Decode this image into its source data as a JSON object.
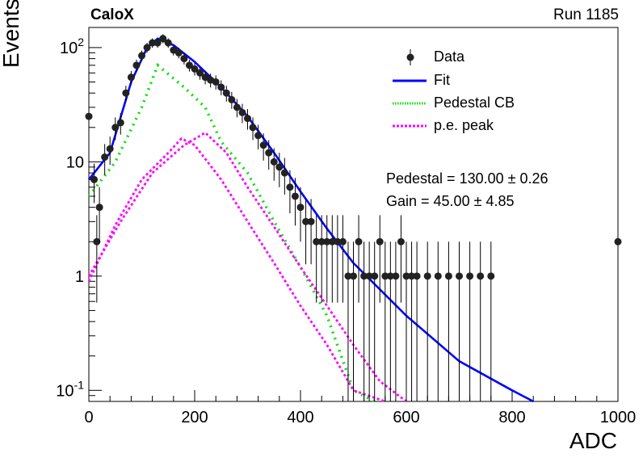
{
  "header": {
    "left_label": "CaloX",
    "right_label": "Run 1185"
  },
  "annotations": {
    "pedestal": "Pedestal = 130.00 ± 0.26",
    "gain": "Gain = 45.00 ± 4.85"
  },
  "legend": [
    {
      "label": "Data",
      "style": "marker",
      "color": "#000000"
    },
    {
      "label": "Fit",
      "style": "solid",
      "color": "#0000ff"
    },
    {
      "label": "Pedestal CB",
      "style": "dotted",
      "color": "#00e000"
    },
    {
      "label": "p.e. peak",
      "style": "dashed",
      "color": "#ff00ff"
    }
  ],
  "chart_data": {
    "type": "scatter",
    "xlabel": "ADC",
    "ylabel": "Events",
    "xlim": [
      0,
      1000
    ],
    "ylim": [
      0.08,
      150
    ],
    "yscale": "log",
    "x_ticks": [
      0,
      200,
      400,
      600,
      800,
      1000
    ],
    "y_tick_labels": [
      {
        "v": 0.1,
        "t": "10^-1"
      },
      {
        "v": 1,
        "t": "1"
      },
      {
        "v": 10,
        "t": "10"
      },
      {
        "v": 100,
        "t": "10^2"
      }
    ],
    "series": [
      {
        "name": "Data",
        "kind": "points",
        "points": [
          [
            0,
            25
          ],
          [
            10,
            7
          ],
          [
            15,
            2
          ],
          [
            20,
            4
          ],
          [
            30,
            11
          ],
          [
            40,
            13
          ],
          [
            50,
            20
          ],
          [
            60,
            22
          ],
          [
            70,
            40
          ],
          [
            80,
            55
          ],
          [
            90,
            70
          ],
          [
            100,
            85
          ],
          [
            110,
            100
          ],
          [
            120,
            110
          ],
          [
            130,
            110
          ],
          [
            140,
            120
          ],
          [
            150,
            110
          ],
          [
            160,
            95
          ],
          [
            170,
            90
          ],
          [
            180,
            80
          ],
          [
            190,
            70
          ],
          [
            200,
            65
          ],
          [
            210,
            60
          ],
          [
            220,
            55
          ],
          [
            230,
            52
          ],
          [
            240,
            50
          ],
          [
            250,
            45
          ],
          [
            260,
            40
          ],
          [
            270,
            35
          ],
          [
            280,
            30
          ],
          [
            290,
            27
          ],
          [
            300,
            24
          ],
          [
            310,
            20
          ],
          [
            320,
            17
          ],
          [
            330,
            14
          ],
          [
            340,
            12
          ],
          [
            350,
            10
          ],
          [
            360,
            9
          ],
          [
            370,
            8
          ],
          [
            380,
            6
          ],
          [
            390,
            5
          ],
          [
            400,
            4
          ],
          [
            410,
            3
          ],
          [
            420,
            3
          ],
          [
            430,
            2
          ],
          [
            440,
            2
          ],
          [
            450,
            2
          ],
          [
            460,
            2
          ],
          [
            470,
            2
          ],
          [
            480,
            2
          ],
          [
            490,
            1
          ],
          [
            500,
            1
          ],
          [
            510,
            2
          ],
          [
            520,
            1
          ],
          [
            530,
            1
          ],
          [
            540,
            1
          ],
          [
            550,
            2
          ],
          [
            560,
            1
          ],
          [
            570,
            1
          ],
          [
            580,
            1
          ],
          [
            590,
            2
          ],
          [
            600,
            1
          ],
          [
            610,
            1
          ],
          [
            620,
            1
          ],
          [
            640,
            1
          ],
          [
            660,
            1
          ],
          [
            680,
            1
          ],
          [
            700,
            1
          ],
          [
            720,
            1
          ],
          [
            740,
            1
          ],
          [
            760,
            1
          ],
          [
            1000,
            2
          ]
        ]
      },
      {
        "name": "Fit",
        "kind": "line",
        "points": [
          [
            0,
            7
          ],
          [
            40,
            12
          ],
          [
            80,
            50
          ],
          [
            110,
            100
          ],
          [
            130,
            120
          ],
          [
            160,
            105
          ],
          [
            200,
            75
          ],
          [
            250,
            45
          ],
          [
            300,
            25
          ],
          [
            350,
            12
          ],
          [
            400,
            5.5
          ],
          [
            450,
            2.6
          ],
          [
            500,
            1.3
          ],
          [
            600,
            0.45
          ],
          [
            700,
            0.18
          ],
          [
            800,
            0.1
          ],
          [
            840,
            0.08
          ]
        ]
      },
      {
        "name": "Pedestal CB",
        "kind": "line",
        "points": [
          [
            0,
            5
          ],
          [
            50,
            10
          ],
          [
            100,
            30
          ],
          [
            130,
            70
          ],
          [
            180,
            45
          ],
          [
            220,
            30
          ],
          [
            250,
            15
          ],
          [
            300,
            8
          ],
          [
            350,
            3
          ],
          [
            400,
            1.2
          ],
          [
            450,
            0.45
          ],
          [
            500,
            0.1
          ],
          [
            540,
            0.08
          ]
        ]
      },
      {
        "name": "p.e. peak",
        "kind": "line",
        "points": [
          [
            0,
            0.9
          ],
          [
            50,
            2.8
          ],
          [
            100,
            7
          ],
          [
            150,
            12
          ],
          [
            175,
            16
          ],
          [
            200,
            14
          ],
          [
            250,
            7
          ],
          [
            300,
            3
          ],
          [
            350,
            1.3
          ],
          [
            400,
            0.55
          ],
          [
            450,
            0.25
          ],
          [
            500,
            0.1
          ],
          [
            560,
            0.08
          ]
        ]
      },
      {
        "name": "",
        "kind": "line",
        "points": [
          [
            0,
            1
          ],
          [
            60,
            3
          ],
          [
            120,
            8
          ],
          [
            180,
            14
          ],
          [
            220,
            18
          ],
          [
            260,
            12
          ],
          [
            300,
            6
          ],
          [
            350,
            2.7
          ],
          [
            400,
            1.2
          ],
          [
            450,
            0.55
          ],
          [
            500,
            0.25
          ],
          [
            550,
            0.12
          ],
          [
            600,
            0.08
          ]
        ]
      }
    ]
  }
}
